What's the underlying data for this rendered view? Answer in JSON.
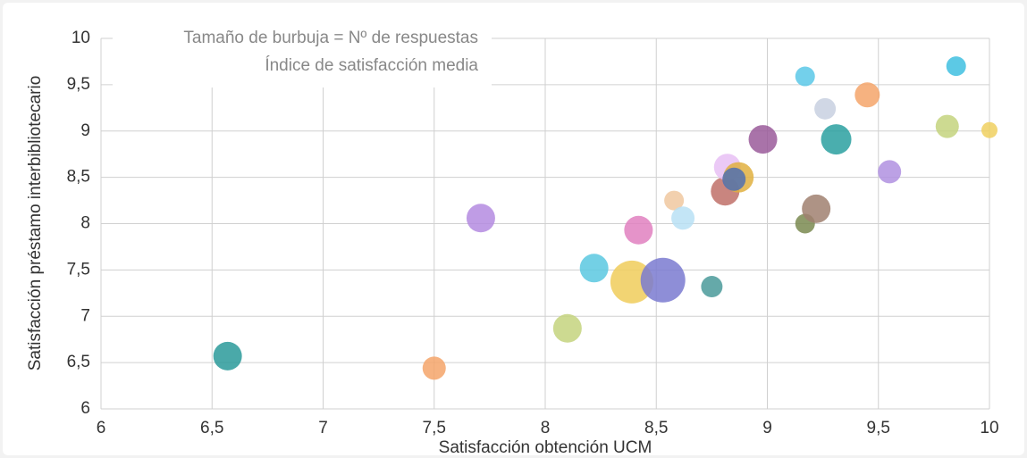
{
  "chart_data": {
    "type": "bubble",
    "annotations": [
      "Tamaño de burbuja = Nº de respuestas",
      "Índice de satisfacción media"
    ],
    "x_label": "Satisfacción obtención UCM",
    "y_label": "Satisfacción préstamo interbibliotecario",
    "xlim": [
      6,
      10
    ],
    "xticks": [
      6,
      {
        "value": 6.5,
        "label": "6,5"
      },
      7,
      {
        "value": 7.5,
        "label": "7,5"
      },
      8,
      {
        "value": 8.5,
        "label": "8,5"
      },
      9,
      {
        "value": 9.5,
        "label": "9,5"
      },
      10
    ],
    "ylim": [
      6,
      10
    ],
    "yticks": [
      6,
      {
        "value": 6.5,
        "label": "6,5"
      },
      7,
      {
        "value": 7.5,
        "label": "7,5"
      },
      8,
      {
        "value": 8.5,
        "label": "8,5"
      },
      9,
      {
        "value": 9.5,
        "label": "9,5"
      },
      10
    ],
    "grid": true,
    "series": [
      {
        "x": [
          6.57,
          7.5,
          7.71,
          8.1,
          8.22,
          8.39,
          8.53,
          8.42,
          8.58,
          8.62,
          8.75,
          8.81,
          8.82,
          8.87,
          8.85,
          8.98,
          9.17,
          9.22,
          9.17,
          9.26,
          9.31,
          9.45,
          9.55,
          9.81,
          9.85,
          10.0
        ],
        "values": [
          6.57,
          6.44,
          8.06,
          6.87,
          7.52,
          7.37,
          7.39,
          7.93,
          8.25,
          8.06,
          7.32,
          8.35,
          8.61,
          8.5,
          8.48,
          8.91,
          8.0,
          8.16,
          9.59,
          9.24,
          8.91,
          9.39,
          8.56,
          9.05,
          9.7,
          9.01
        ],
        "sizes": [
          256,
          169,
          256,
          256,
          256,
          576,
          625,
          256,
          121,
          169,
          144,
          256,
          225,
          289,
          169,
          256,
          121,
          256,
          121,
          144,
          289,
          196,
          169,
          169,
          121,
          81
        ],
        "colors": [
          "#2a9a9a",
          "#f4a46a",
          "#b48be0",
          "#c4d47e",
          "#5bc8e0",
          "#f0cc5a",
          "#7a7ad0",
          "#e080c0",
          "#f0c8a0",
          "#b8e0f5",
          "#4a9a9a",
          "#c07068",
          "#e8c0f5",
          "#e0b040",
          "#5070b0",
          "#9a5a9a",
          "#7a8a50",
          "#a08070",
          "#5bc8e8",
          "#c8d0e0",
          "#2aa0a0",
          "#f4a46a",
          "#b090e0",
          "#c4d47e",
          "#40c0e0",
          "#f0d060"
        ]
      }
    ]
  }
}
